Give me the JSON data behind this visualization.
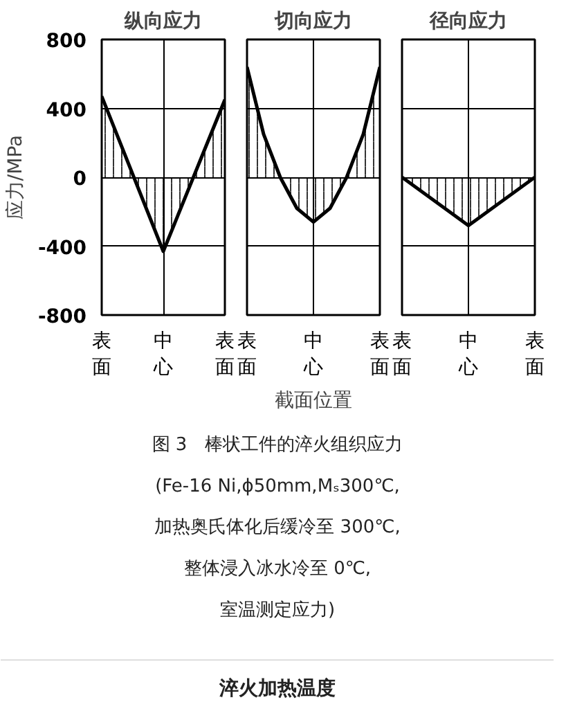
{
  "chart_data": [
    {
      "type": "area",
      "title": "纵向应力",
      "ylabel": "应力/MPa",
      "categories": [
        "表面",
        "中心",
        "表面"
      ],
      "ylim": [
        -800,
        800
      ],
      "yticks": [
        -800,
        -400,
        0,
        400,
        800
      ],
      "grid": true,
      "series": [
        {
          "color": "#000000",
          "values": [
            470,
            -430,
            450
          ]
        }
      ]
    },
    {
      "type": "area",
      "title": "切向应力",
      "xlabel": "截面位置",
      "categories": [
        "表面",
        null,
        null,
        null,
        "中心",
        null,
        null,
        null,
        "表面"
      ],
      "ylim": [
        -800,
        800
      ],
      "yticks": [
        -800,
        -400,
        0,
        400,
        800
      ],
      "grid": true,
      "tick_labels": "x",
      "series": [
        {
          "color": "#000000",
          "values": [
            640,
            250,
            0,
            -180,
            -260,
            -180,
            0,
            250,
            640
          ]
        }
      ],
      "annotations": [
        "图 3　棒状工件的淬火组织应力",
        "(Fe-16 Ni,ϕ50mm,Mₛ300℃,",
        "加热奥氏体化后缓冷至 300℃,",
        "整体浸入冰水冷至 0℃,",
        "室温测定应力)",
        "淬火加热温度"
      ]
    },
    {
      "type": "area",
      "title": "径向应力",
      "categories": [
        "表面",
        "中心",
        "表面"
      ],
      "ylim": [
        -800,
        800
      ],
      "yticks": [
        -800,
        -400,
        0,
        400,
        800
      ],
      "grid": true,
      "tick_labels": "x",
      "series": [
        {
          "color": "#000000",
          "values": [
            0,
            -280,
            0
          ]
        }
      ]
    }
  ]
}
